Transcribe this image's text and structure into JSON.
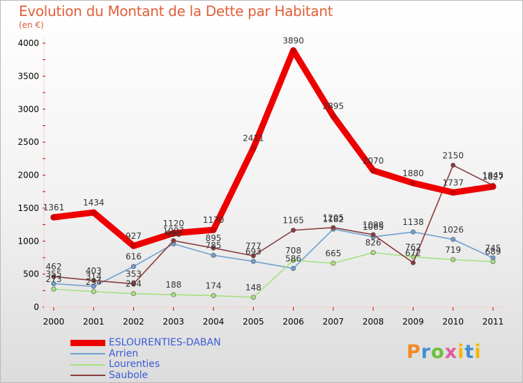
{
  "title": "Evolution du Montant de la Dette par Habitant",
  "subtitle": "(en €)",
  "logo": {
    "letters": [
      "P",
      "r",
      "o",
      "x",
      "i",
      "t",
      "i"
    ]
  },
  "chart_data": {
    "type": "line",
    "title": "Evolution du Montant de la Dette par Habitant",
    "ylabel": "(en €)",
    "xlabel": "",
    "ylim": [
      0,
      4000
    ],
    "yticks": [
      0,
      500,
      1000,
      1500,
      2000,
      2500,
      3000,
      3500,
      4000
    ],
    "categories": [
      "2000",
      "2001",
      "2002",
      "2003",
      "2004",
      "2005",
      "2006",
      "2007",
      "2008",
      "2009",
      "2010",
      "2011"
    ],
    "series": [
      {
        "name": "ESLOURENTIES-DABAN",
        "color": "#ee0000",
        "values": [
          1361,
          1434,
          927,
          1120,
          1170,
          2411,
          3890,
          2895,
          2070,
          1880,
          1737,
          1827
        ],
        "labels": [
          "1361",
          "1434",
          "927",
          "1120",
          "1170",
          "2411",
          "3890",
          "2895",
          "2070",
          "1880",
          "1737",
          "1827"
        ]
      },
      {
        "name": "Arrien",
        "color": "#6f9fcf",
        "values": [
          355,
          314,
          616,
          958,
          785,
          693,
          586,
          1182,
          1065,
          1138,
          1026,
          745
        ],
        "labels": [
          "355",
          "314",
          "616",
          "958",
          "785",
          "693",
          "586",
          "1182",
          "1065",
          "1138",
          "1026",
          "745"
        ]
      },
      {
        "name": "Lourenties",
        "color": "#a7e07f",
        "values": [
          273,
          234,
          204,
          188,
          174,
          148,
          708,
          665,
          826,
          762,
          719,
          689
        ],
        "labels": [
          "273",
          "234",
          "204",
          "188",
          "174",
          "148",
          "708",
          "665",
          "826",
          "762",
          "719",
          "689"
        ]
      },
      {
        "name": "Saubole",
        "color": "#8b3a3a",
        "values": [
          462,
          403,
          353,
          1007,
          895,
          777,
          1165,
          1205,
          1098,
          672,
          2150,
          1845
        ],
        "labels": [
          "462",
          "403",
          "353",
          "1007",
          "895",
          "777",
          "1165",
          "1205",
          "1098",
          "672",
          "2150",
          "1845"
        ]
      }
    ]
  }
}
